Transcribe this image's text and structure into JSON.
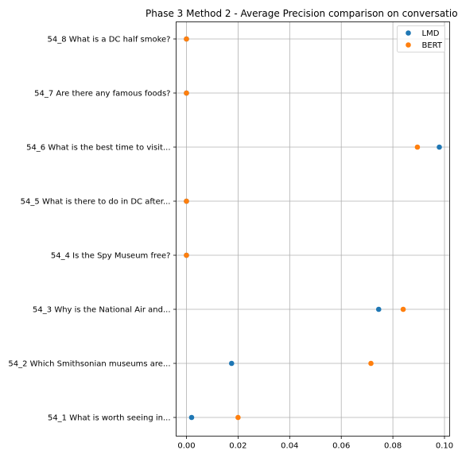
{
  "chart_data": {
    "type": "scatter",
    "title": "Phase 3 Method 2 - Average Precision comparison on conversatio",
    "xlabel": "",
    "ylabel": "",
    "xlim": [
      -0.004,
      0.102
    ],
    "xticks": [
      0.0,
      0.02,
      0.04,
      0.06,
      0.08,
      0.1
    ],
    "xtick_labels": [
      "0.00",
      "0.02",
      "0.04",
      "0.06",
      "0.08",
      "0.10"
    ],
    "categories": [
      "54_1 What is worth seeing in...",
      "54_2 Which Smithsonian museums are...",
      "54_3 Why is the National Air and...",
      "54_4 Is the Spy Museum free?",
      "54_5 What is there to do in DC after...",
      "54_6 What is the best time to visit...",
      "54_7 Are there any famous foods?",
      "54_8 What is a DC half smoke?"
    ],
    "series": [
      {
        "name": "LMD",
        "color": "#1f77b4",
        "values": [
          0.002,
          0.0175,
          0.0745,
          0.0,
          0.0,
          0.098,
          0.0,
          0.0
        ]
      },
      {
        "name": "BERT",
        "color": "#ff7f0e",
        "values": [
          0.02,
          0.0715,
          0.084,
          0.0,
          0.0,
          0.0895,
          0.0,
          0.0
        ]
      }
    ],
    "grid": true,
    "legend": {
      "position": "top-right"
    }
  }
}
